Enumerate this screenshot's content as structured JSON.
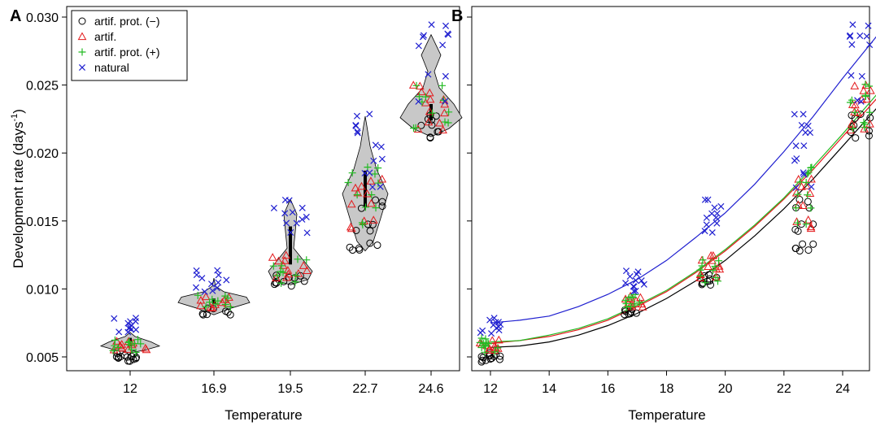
{
  "chart_data": [
    {
      "panel": "A",
      "type": "violin",
      "xlabel": "Temperature",
      "ylabel": "Development rate (days",
      "ylabel_sup": "-1",
      "ylabel_close": ")",
      "ylim": [
        0.005,
        0.03
      ],
      "yticks": [
        "0.005",
        "0.010",
        "0.015",
        "0.020",
        "0.025",
        "0.030"
      ],
      "yticks_values": [
        0.005,
        0.01,
        0.015,
        0.02,
        0.025,
        0.03
      ],
      "categories": [
        "12",
        "16.9",
        "19.5",
        "22.7",
        "24.6"
      ],
      "legend": [
        {
          "label": "artif. prot. (−)",
          "marker": "circle",
          "color": "#000000"
        },
        {
          "label": "artif.",
          "marker": "triangle",
          "color": "#e31a1c"
        },
        {
          "label": "artif. prot. (+)",
          "marker": "plus",
          "color": "#22bb22"
        },
        {
          "label": "natural",
          "marker": "x",
          "color": "#1f1fd0"
        }
      ],
      "groups": [
        {
          "category": "12",
          "artif_prot_minus": [
            0.0047,
            0.0048,
            0.0049,
            0.005,
            0.005,
            0.0051,
            0.0052
          ],
          "artif": [
            0.0055,
            0.0056,
            0.0057,
            0.0058,
            0.006,
            0.0062
          ],
          "artif_prot_plus": [
            0.0054,
            0.0056,
            0.0058,
            0.0059,
            0.0061,
            0.0063
          ],
          "natural": [
            0.0068,
            0.007,
            0.0072,
            0.0074,
            0.0076,
            0.0078
          ]
        },
        {
          "category": "16.9",
          "artif_prot_minus": [
            0.0081,
            0.0082,
            0.0083,
            0.0085
          ],
          "artif": [
            0.0086,
            0.0088,
            0.009,
            0.0092,
            0.0094
          ],
          "artif_prot_plus": [
            0.0087,
            0.0089,
            0.0091,
            0.0093,
            0.0095
          ],
          "natural": [
            0.0098,
            0.0101,
            0.0104,
            0.0107,
            0.011,
            0.0113
          ]
        },
        {
          "category": "19.5",
          "artif_prot_minus": [
            0.0103,
            0.0104,
            0.0106,
            0.0108,
            0.011
          ],
          "artif": [
            0.0108,
            0.0111,
            0.0114,
            0.0117,
            0.0121,
            0.0124
          ],
          "artif_prot_plus": [
            0.0105,
            0.0109,
            0.0113,
            0.0117,
            0.0121
          ],
          "natural": [
            0.0142,
            0.0148,
            0.0152,
            0.0156,
            0.016,
            0.0165
          ]
        },
        {
          "category": "22.7",
          "artif_prot_minus": [
            0.0128,
            0.013,
            0.0133,
            0.0143,
            0.0148,
            0.016,
            0.0165
          ],
          "artif": [
            0.0145,
            0.015,
            0.0162,
            0.017,
            0.0175,
            0.018
          ],
          "artif_prot_plus": [
            0.0148,
            0.016,
            0.017,
            0.0178,
            0.0185,
            0.0189
          ],
          "natural": [
            0.0175,
            0.0185,
            0.0195,
            0.0205,
            0.0215,
            0.022,
            0.0228
          ]
        },
        {
          "category": "24.6",
          "artif_prot_minus": [
            0.0212,
            0.0216,
            0.022,
            0.0225,
            0.0228
          ],
          "artif": [
            0.0217,
            0.0222,
            0.023,
            0.0236,
            0.024,
            0.0245,
            0.025
          ],
          "artif_prot_plus": [
            0.0218,
            0.0222,
            0.023,
            0.0238,
            0.0242,
            0.025
          ],
          "natural": [
            0.0238,
            0.0257,
            0.0279,
            0.0286,
            0.0287,
            0.0294
          ]
        }
      ]
    },
    {
      "panel": "B",
      "type": "scatter",
      "xlabel": "Temperature",
      "xlim": [
        11.95,
        25.3
      ],
      "xticks": [
        "12",
        "14",
        "16",
        "18",
        "20",
        "22",
        "24"
      ],
      "xticks_values": [
        12,
        14,
        16,
        18,
        20,
        22,
        24
      ],
      "ylim": [
        0.005,
        0.03
      ],
      "fit_lines": [
        {
          "marker_group": "artif. prot. (−)",
          "color": "#000000",
          "x": [
            12,
            13,
            14,
            15,
            16,
            17,
            18,
            19,
            20,
            21,
            22,
            23,
            24,
            25.2
          ],
          "y": [
            0.0057,
            0.0058,
            0.0061,
            0.0066,
            0.0073,
            0.0082,
            0.0093,
            0.0106,
            0.0121,
            0.0139,
            0.0159,
            0.0181,
            0.0205,
            0.0234
          ]
        },
        {
          "marker_group": "artif.",
          "color": "#e31a1c",
          "x": [
            12,
            13,
            14,
            15,
            16,
            17,
            18,
            19,
            20,
            21,
            22,
            23,
            24,
            25.2
          ],
          "y": [
            0.006,
            0.0062,
            0.0065,
            0.007,
            0.0077,
            0.0087,
            0.0098,
            0.0112,
            0.0128,
            0.0146,
            0.0166,
            0.0188,
            0.0212,
            0.0241
          ]
        },
        {
          "marker_group": "artif. prot. (+)",
          "color": "#22bb22",
          "x": [
            12,
            13,
            14,
            15,
            16,
            17,
            18,
            19,
            20,
            21,
            22,
            23,
            24,
            25.2
          ],
          "y": [
            0.0061,
            0.0062,
            0.0066,
            0.0071,
            0.0078,
            0.0088,
            0.0099,
            0.0113,
            0.0129,
            0.0147,
            0.0167,
            0.019,
            0.0214,
            0.0244
          ]
        },
        {
          "marker_group": "natural",
          "color": "#1f1fd0",
          "x": [
            12,
            13,
            14,
            15,
            16,
            17,
            18,
            19,
            20,
            21,
            22,
            23,
            24,
            25.2
          ],
          "y": [
            0.0075,
            0.0077,
            0.008,
            0.0087,
            0.0096,
            0.0107,
            0.0121,
            0.0138,
            0.0156,
            0.0177,
            0.0201,
            0.0227,
            0.0255,
            0.0287
          ]
        }
      ],
      "groups_x": [
        12.0,
        16.9,
        19.5,
        22.7,
        24.6
      ]
    }
  ]
}
